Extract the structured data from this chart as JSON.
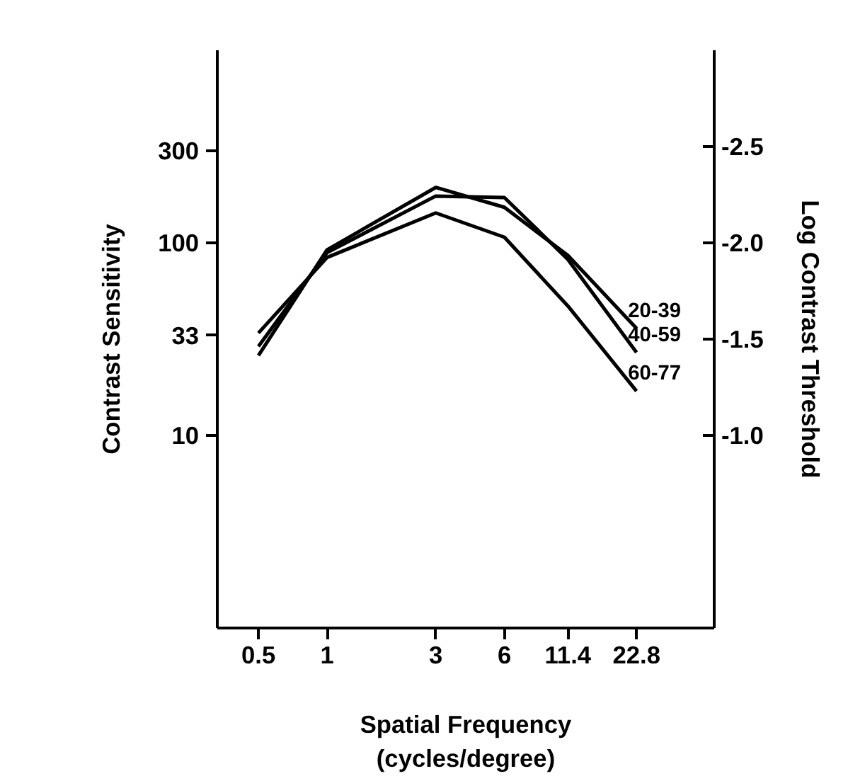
{
  "chart_data": {
    "type": "line",
    "xlabel": "Spatial Frequency\n(cycles/degree)",
    "ylabel": "Contrast Sensitivity",
    "y2label": "Log Contrast Threshold",
    "x": [
      0.5,
      1,
      3,
      6,
      11.4,
      22.8
    ],
    "series": [
      {
        "name": "20-39",
        "color": "#000000",
        "values": [
          26,
          92,
          194,
          153,
          86,
          36
        ]
      },
      {
        "name": "40-59",
        "color": "#000000",
        "values": [
          29,
          89,
          175,
          172,
          82,
          27
        ]
      },
      {
        "name": "60-77",
        "color": "#000000",
        "values": [
          34,
          84,
          143,
          107,
          47,
          17
        ]
      }
    ],
    "log": "xy",
    "xlim": [
      0.33,
      50
    ],
    "xticks": [
      0.5,
      1,
      3,
      6,
      11.4,
      22.8
    ],
    "ylim": [
      1,
      1000
    ],
    "yticks": [
      10,
      33,
      100,
      300
    ],
    "y2lim": [
      0,
      -3
    ],
    "y2ticks": [
      {
        "value": -1,
        "label": "-1.0"
      },
      {
        "value": -1.5,
        "label": "-1.5"
      },
      {
        "value": -2,
        "label": "-2.0"
      },
      {
        "value": -2.5,
        "label": "-2.5"
      }
    ],
    "grid": false,
    "marker": "none",
    "line_style": "solid"
  }
}
